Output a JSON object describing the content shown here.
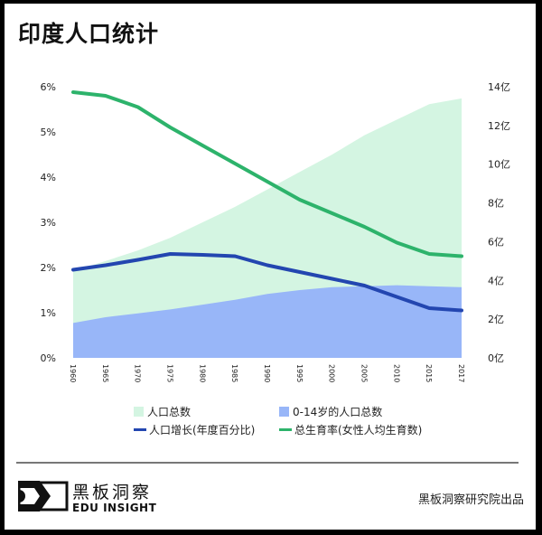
{
  "title": "印度人口统计",
  "chart_data": {
    "type": "area+line",
    "categories": [
      "1960",
      "1965",
      "1970",
      "1975",
      "1980",
      "1985",
      "1990",
      "1995",
      "2000",
      "2005",
      "2010",
      "2015",
      "2017"
    ],
    "left_axis": {
      "ticks": [
        "0%",
        "1%",
        "2%",
        "3%",
        "4%",
        "5%",
        "6%"
      ],
      "range": [
        0,
        6
      ]
    },
    "right_axis": {
      "ticks": [
        "0亿",
        "2亿",
        "4亿",
        "6亿",
        "8亿",
        "10亿",
        "12亿",
        "14亿"
      ],
      "range": [
        0,
        14
      ]
    },
    "series": [
      {
        "name": "人口总数",
        "type": "area",
        "axis": "right",
        "color": "#d4f5e2",
        "values": [
          4.5,
          5.0,
          5.55,
          6.2,
          7.0,
          7.8,
          8.7,
          9.6,
          10.5,
          11.5,
          12.3,
          13.1,
          13.4
        ]
      },
      {
        "name": "0-14岁的人口总数",
        "type": "area",
        "axis": "right",
        "color": "#98b6f8",
        "values": [
          1.8,
          2.1,
          2.3,
          2.5,
          2.75,
          3.0,
          3.3,
          3.5,
          3.65,
          3.7,
          3.75,
          3.7,
          3.65
        ]
      },
      {
        "name": "人口增长(年度百分比)",
        "type": "line",
        "axis": "left",
        "color": "#2346b0",
        "values": [
          1.95,
          2.05,
          2.17,
          2.3,
          2.28,
          2.25,
          2.05,
          1.9,
          1.75,
          1.6,
          1.35,
          1.1,
          1.05
        ]
      },
      {
        "name": "总生育率(女性人均生育数)",
        "type": "line",
        "axis": "left",
        "color": "#2db36b",
        "values": [
          5.88,
          5.8,
          5.55,
          5.1,
          4.7,
          4.3,
          3.9,
          3.5,
          3.2,
          2.9,
          2.55,
          2.3,
          2.25
        ]
      }
    ],
    "grid": false,
    "legend_placement": "bottom"
  },
  "footer": {
    "logo_cn": "黑板洞察",
    "logo_en": "EDU INSIGHT",
    "credit": "黑板洞察研究院出品"
  }
}
